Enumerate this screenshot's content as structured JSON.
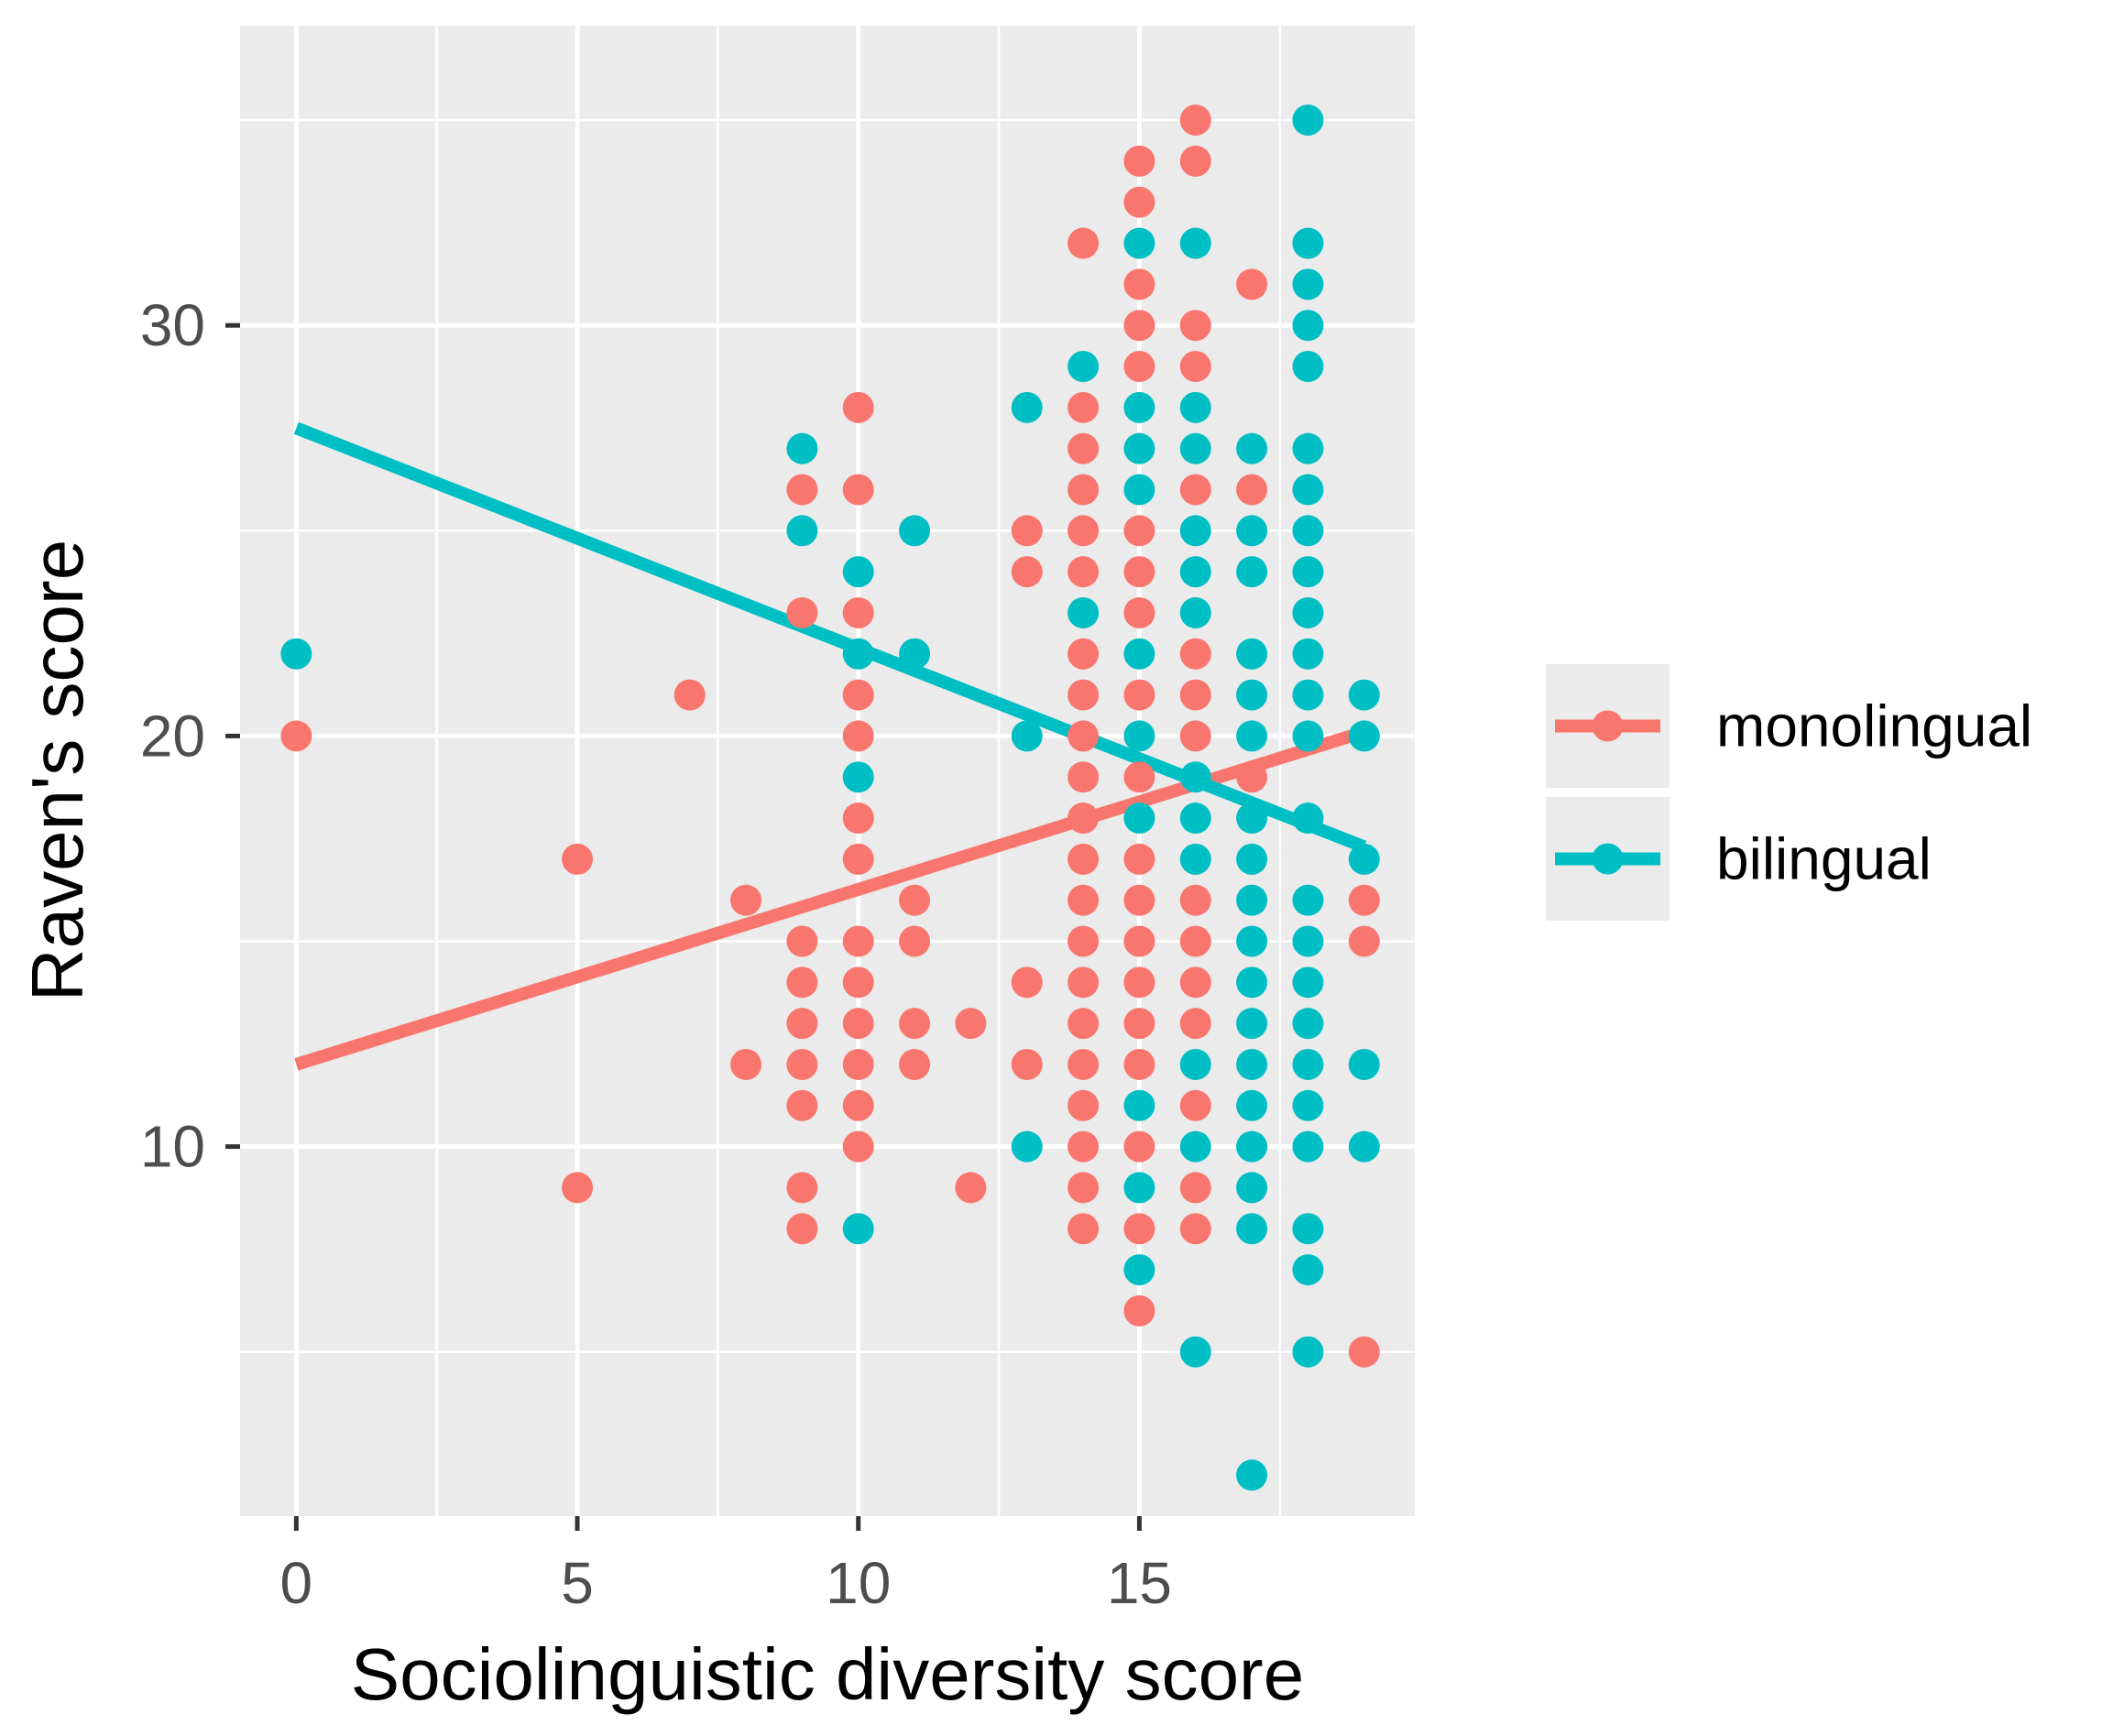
{
  "chart_data": {
    "type": "scatter",
    "title": "",
    "xlabel": "Sociolinguistic diversity score",
    "ylabel": "Raven's score",
    "xlim": [
      -1.0,
      19.9
    ],
    "ylim": [
      1.0,
      37.3
    ],
    "x_ticks": [
      0,
      5,
      10,
      15
    ],
    "x_tick_labels": [
      "0",
      "5",
      "10",
      "15"
    ],
    "x_minor": [
      2.5,
      7.5,
      12.5,
      17.5
    ],
    "y_ticks": [
      10,
      20,
      30
    ],
    "y_tick_labels": [
      "10",
      "20",
      "30"
    ],
    "y_minor": [
      5,
      15,
      25,
      35
    ],
    "grid": true,
    "legend_position": "right",
    "series": [
      {
        "name": "monolingual",
        "color": "#F8766D",
        "fit": {
          "x": [
            0,
            19
          ],
          "y": [
            12.0,
            20.1
          ]
        },
        "points": [
          [
            0,
            20
          ],
          [
            5,
            17
          ],
          [
            5,
            9
          ],
          [
            7,
            21
          ],
          [
            8,
            16
          ],
          [
            8,
            12
          ],
          [
            9,
            26
          ],
          [
            9,
            23
          ],
          [
            9,
            15
          ],
          [
            9,
            14
          ],
          [
            9,
            13
          ],
          [
            9,
            12
          ],
          [
            9,
            11
          ],
          [
            9,
            9
          ],
          [
            9,
            8
          ],
          [
            10,
            28
          ],
          [
            10,
            26
          ],
          [
            10,
            23
          ],
          [
            10,
            21
          ],
          [
            10,
            20
          ],
          [
            10,
            18
          ],
          [
            10,
            17
          ],
          [
            10,
            15
          ],
          [
            10,
            14
          ],
          [
            10,
            13
          ],
          [
            10,
            12
          ],
          [
            10,
            11
          ],
          [
            10,
            10
          ],
          [
            11,
            16
          ],
          [
            11,
            15
          ],
          [
            11,
            13
          ],
          [
            11,
            12
          ],
          [
            12,
            13
          ],
          [
            12,
            9
          ],
          [
            13,
            25
          ],
          [
            13,
            24
          ],
          [
            13,
            14
          ],
          [
            13,
            12
          ],
          [
            14,
            32
          ],
          [
            14,
            28
          ],
          [
            14,
            27
          ],
          [
            14,
            26
          ],
          [
            14,
            25
          ],
          [
            14,
            24
          ],
          [
            14,
            22
          ],
          [
            14,
            21
          ],
          [
            14,
            20
          ],
          [
            14,
            19
          ],
          [
            14,
            18
          ],
          [
            14,
            17
          ],
          [
            14,
            16
          ],
          [
            14,
            15
          ],
          [
            14,
            14
          ],
          [
            14,
            13
          ],
          [
            14,
            12
          ],
          [
            14,
            11
          ],
          [
            14,
            10
          ],
          [
            14,
            9
          ],
          [
            14,
            8
          ],
          [
            15,
            34
          ],
          [
            15,
            33
          ],
          [
            15,
            31
          ],
          [
            15,
            30
          ],
          [
            15,
            29
          ],
          [
            15,
            25
          ],
          [
            15,
            24
          ],
          [
            15,
            23
          ],
          [
            15,
            21
          ],
          [
            15,
            19
          ],
          [
            15,
            17
          ],
          [
            15,
            16
          ],
          [
            15,
            15
          ],
          [
            15,
            14
          ],
          [
            15,
            13
          ],
          [
            15,
            12
          ],
          [
            15,
            10
          ],
          [
            15,
            8
          ],
          [
            15,
            6
          ],
          [
            16,
            35
          ],
          [
            16,
            34
          ],
          [
            16,
            30
          ],
          [
            16,
            29
          ],
          [
            16,
            26
          ],
          [
            16,
            22
          ],
          [
            16,
            21
          ],
          [
            16,
            20
          ],
          [
            16,
            16
          ],
          [
            16,
            15
          ],
          [
            16,
            14
          ],
          [
            16,
            13
          ],
          [
            16,
            11
          ],
          [
            16,
            9
          ],
          [
            16,
            8
          ],
          [
            17,
            31
          ],
          [
            17,
            26
          ],
          [
            17,
            19
          ],
          [
            19,
            16
          ],
          [
            19,
            15
          ],
          [
            19,
            5
          ]
        ]
      },
      {
        "name": "bilingual",
        "color": "#00BFC4",
        "fit": {
          "x": [
            0,
            19
          ],
          "y": [
            27.5,
            17.3
          ]
        },
        "points": [
          [
            0,
            22
          ],
          [
            9,
            27
          ],
          [
            9,
            25
          ],
          [
            10,
            24
          ],
          [
            10,
            22
          ],
          [
            10,
            19
          ],
          [
            10,
            8
          ],
          [
            11,
            25
          ],
          [
            11,
            22
          ],
          [
            13,
            28
          ],
          [
            13,
            20
          ],
          [
            13,
            10
          ],
          [
            14,
            29
          ],
          [
            14,
            23
          ],
          [
            15,
            32
          ],
          [
            15,
            28
          ],
          [
            15,
            27
          ],
          [
            15,
            26
          ],
          [
            15,
            22
          ],
          [
            15,
            20
          ],
          [
            15,
            18
          ],
          [
            15,
            11
          ],
          [
            15,
            9
          ],
          [
            15,
            7
          ],
          [
            16,
            32
          ],
          [
            16,
            28
          ],
          [
            16,
            27
          ],
          [
            16,
            25
          ],
          [
            16,
            24
          ],
          [
            16,
            23
          ],
          [
            16,
            19
          ],
          [
            16,
            18
          ],
          [
            16,
            17
          ],
          [
            16,
            12
          ],
          [
            16,
            10
          ],
          [
            16,
            5
          ],
          [
            17,
            27
          ],
          [
            17,
            25
          ],
          [
            17,
            24
          ],
          [
            17,
            22
          ],
          [
            17,
            21
          ],
          [
            17,
            20
          ],
          [
            17,
            18
          ],
          [
            17,
            17
          ],
          [
            17,
            16
          ],
          [
            17,
            15
          ],
          [
            17,
            14
          ],
          [
            17,
            13
          ],
          [
            17,
            12
          ],
          [
            17,
            11
          ],
          [
            17,
            10
          ],
          [
            17,
            9
          ],
          [
            17,
            8
          ],
          [
            17,
            2
          ],
          [
            18,
            35
          ],
          [
            18,
            32
          ],
          [
            18,
            31
          ],
          [
            18,
            30
          ],
          [
            18,
            29
          ],
          [
            18,
            27
          ],
          [
            18,
            26
          ],
          [
            18,
            25
          ],
          [
            18,
            24
          ],
          [
            18,
            23
          ],
          [
            18,
            22
          ],
          [
            18,
            21
          ],
          [
            18,
            20
          ],
          [
            18,
            18
          ],
          [
            18,
            16
          ],
          [
            18,
            15
          ],
          [
            18,
            14
          ],
          [
            18,
            13
          ],
          [
            18,
            12
          ],
          [
            18,
            11
          ],
          [
            18,
            10
          ],
          [
            18,
            8
          ],
          [
            18,
            7
          ],
          [
            18,
            5
          ],
          [
            19,
            21
          ],
          [
            19,
            20
          ],
          [
            19,
            17
          ],
          [
            19,
            12
          ],
          [
            19,
            10
          ]
        ]
      }
    ]
  }
}
